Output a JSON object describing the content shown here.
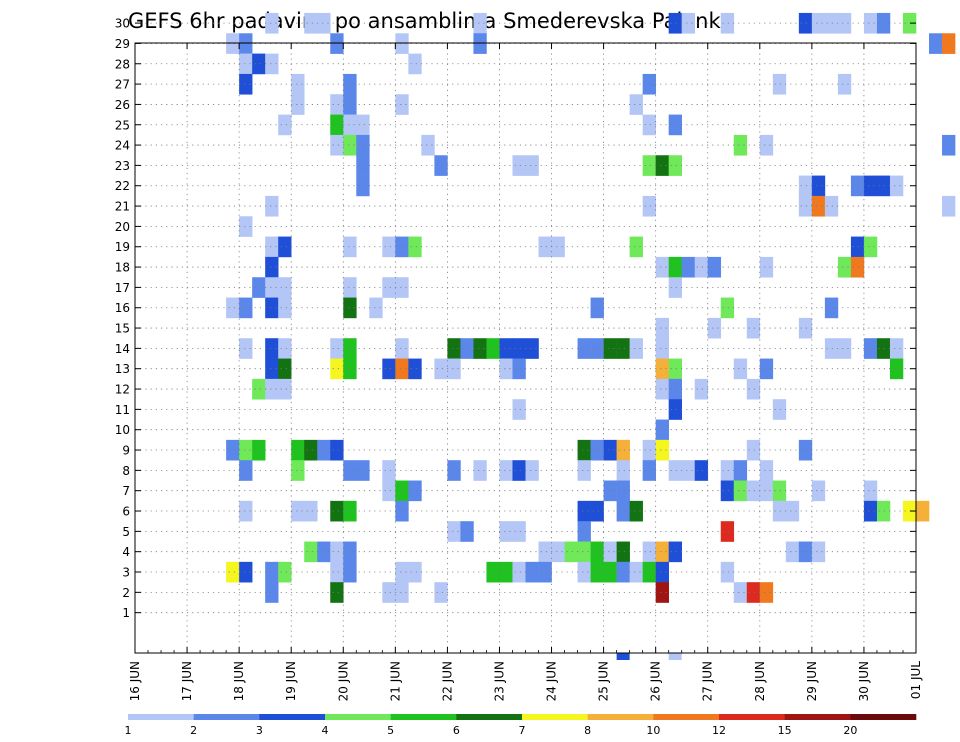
{
  "chart_data": {
    "type": "heatmap",
    "title": "GEFS 6hr padavine po ansamblima Smederevska Palanka",
    "xlabel": "",
    "ylabel": "",
    "y_categories": [
      "1",
      "2",
      "3",
      "4",
      "5",
      "6",
      "7",
      "8",
      "9",
      "10",
      "11",
      "12",
      "13",
      "14",
      "15",
      "16",
      "17",
      "18",
      "19",
      "20",
      "21",
      "22",
      "23",
      "24",
      "25",
      "26",
      "27",
      "28",
      "29",
      "30"
    ],
    "x_tick_labels": [
      "16 JUN",
      "17 JUN",
      "18 JUN",
      "19 JUN",
      "20 JUN",
      "21 JUN",
      "22 JUN",
      "23 JUN",
      "24 JUN",
      "25 JUN",
      "26 JUN",
      "27 JUN",
      "28 JUN",
      "29 JUN",
      "30 JUN",
      "01 JUL"
    ],
    "x_step": "6 hours",
    "grid": true,
    "colorbar": {
      "placement": "bottom",
      "labels": [
        "1",
        "2",
        "3",
        "4",
        "5",
        "6",
        "7",
        "8",
        "10",
        "12",
        "15",
        "20"
      ],
      "colors": [
        "#b3c6f5",
        "#5b87ea",
        "#1f4fd6",
        "#6fe85a",
        "#1fc21f",
        "#137313",
        "#f5f51f",
        "#f5b03a",
        "#f0781e",
        "#dc2a1e",
        "#a01414",
        "#6b0a0a"
      ]
    },
    "colors": [
      "#b3c6f5",
      "#5b87ea",
      "#1f4fd6",
      "#6fe85a",
      "#1fc21f",
      "#137313",
      "#f5f51f",
      "#f5b03a",
      "#f0781e",
      "#dc2a1e",
      "#a01414"
    ],
    "cells": [
      [
        30,
        10,
        0
      ],
      [
        30,
        13,
        0
      ],
      [
        30,
        14,
        0
      ],
      [
        30,
        26,
        0
      ],
      [
        30,
        41,
        2
      ],
      [
        30,
        42,
        0
      ],
      [
        30,
        45,
        0
      ],
      [
        30,
        51,
        2
      ],
      [
        30,
        52,
        0
      ],
      [
        30,
        53,
        0
      ],
      [
        30,
        54,
        0
      ],
      [
        30,
        56,
        0
      ],
      [
        30,
        57,
        1
      ],
      [
        30,
        59,
        3
      ],
      [
        29,
        7,
        0
      ],
      [
        29,
        8,
        1
      ],
      [
        29,
        15,
        1
      ],
      [
        29,
        20,
        0
      ],
      [
        29,
        26,
        1
      ],
      [
        29,
        61,
        1
      ],
      [
        29,
        62,
        8
      ],
      [
        28,
        8,
        0
      ],
      [
        28,
        9,
        2
      ],
      [
        28,
        10,
        0
      ],
      [
        28,
        21,
        0
      ],
      [
        27,
        8,
        2
      ],
      [
        27,
        12,
        0
      ],
      [
        27,
        16,
        1
      ],
      [
        27,
        39,
        1
      ],
      [
        27,
        49,
        0
      ],
      [
        27,
        54,
        0
      ],
      [
        26,
        12,
        0
      ],
      [
        26,
        15,
        0
      ],
      [
        26,
        16,
        1
      ],
      [
        26,
        20,
        0
      ],
      [
        26,
        38,
        0
      ],
      [
        25,
        11,
        0
      ],
      [
        25,
        15,
        4
      ],
      [
        25,
        16,
        0
      ],
      [
        25,
        17,
        0
      ],
      [
        25,
        39,
        0
      ],
      [
        25,
        41,
        1
      ],
      [
        24,
        15,
        0
      ],
      [
        24,
        16,
        3
      ],
      [
        24,
        17,
        1
      ],
      [
        24,
        22,
        0
      ],
      [
        24,
        46,
        3
      ],
      [
        24,
        48,
        0
      ],
      [
        24,
        62,
        1
      ],
      [
        23,
        17,
        1
      ],
      [
        23,
        23,
        1
      ],
      [
        23,
        29,
        0
      ],
      [
        23,
        30,
        0
      ],
      [
        23,
        39,
        3
      ],
      [
        23,
        40,
        5
      ],
      [
        23,
        41,
        3
      ],
      [
        22,
        17,
        1
      ],
      [
        22,
        51,
        0
      ],
      [
        22,
        52,
        2
      ],
      [
        22,
        55,
        1
      ],
      [
        22,
        56,
        2
      ],
      [
        22,
        57,
        2
      ],
      [
        22,
        58,
        0
      ],
      [
        21,
        10,
        0
      ],
      [
        21,
        39,
        0
      ],
      [
        21,
        51,
        0
      ],
      [
        21,
        52,
        8
      ],
      [
        21,
        53,
        0
      ],
      [
        21,
        62,
        0
      ],
      [
        20,
        8,
        0
      ],
      [
        19,
        10,
        0
      ],
      [
        19,
        11,
        2
      ],
      [
        19,
        16,
        0
      ],
      [
        19,
        19,
        0
      ],
      [
        19,
        20,
        1
      ],
      [
        19,
        21,
        3
      ],
      [
        19,
        31,
        0
      ],
      [
        19,
        32,
        0
      ],
      [
        19,
        38,
        3
      ],
      [
        19,
        55,
        2
      ],
      [
        19,
        56,
        3
      ],
      [
        18,
        10,
        2
      ],
      [
        18,
        40,
        0
      ],
      [
        18,
        41,
        4
      ],
      [
        18,
        42,
        1
      ],
      [
        18,
        43,
        0
      ],
      [
        18,
        44,
        1
      ],
      [
        18,
        48,
        0
      ],
      [
        18,
        54,
        3
      ],
      [
        18,
        55,
        8
      ],
      [
        17,
        9,
        1
      ],
      [
        17,
        10,
        0
      ],
      [
        17,
        11,
        0
      ],
      [
        17,
        16,
        0
      ],
      [
        17,
        19,
        0
      ],
      [
        17,
        20,
        0
      ],
      [
        17,
        41,
        0
      ],
      [
        16,
        7,
        0
      ],
      [
        16,
        8,
        1
      ],
      [
        16,
        10,
        2
      ],
      [
        16,
        11,
        0
      ],
      [
        16,
        16,
        5
      ],
      [
        16,
        18,
        0
      ],
      [
        16,
        35,
        1
      ],
      [
        16,
        45,
        3
      ],
      [
        16,
        53,
        1
      ],
      [
        15,
        40,
        0
      ],
      [
        15,
        44,
        0
      ],
      [
        15,
        47,
        0
      ],
      [
        15,
        51,
        0
      ],
      [
        14,
        8,
        0
      ],
      [
        14,
        10,
        2
      ],
      [
        14,
        11,
        0
      ],
      [
        14,
        15,
        0
      ],
      [
        14,
        16,
        4
      ],
      [
        14,
        20,
        0
      ],
      [
        14,
        24,
        5
      ],
      [
        14,
        25,
        1
      ],
      [
        14,
        26,
        5
      ],
      [
        14,
        27,
        4
      ],
      [
        14,
        28,
        2
      ],
      [
        14,
        29,
        2
      ],
      [
        14,
        30,
        2
      ],
      [
        14,
        34,
        1
      ],
      [
        14,
        35,
        1
      ],
      [
        14,
        36,
        5
      ],
      [
        14,
        37,
        5
      ],
      [
        14,
        38,
        0
      ],
      [
        14,
        40,
        0
      ],
      [
        14,
        53,
        0
      ],
      [
        14,
        54,
        0
      ],
      [
        14,
        56,
        1
      ],
      [
        14,
        57,
        5
      ],
      [
        14,
        58,
        0
      ],
      [
        13,
        10,
        2
      ],
      [
        13,
        11,
        5
      ],
      [
        13,
        15,
        6
      ],
      [
        13,
        16,
        4
      ],
      [
        13,
        19,
        2
      ],
      [
        13,
        20,
        8
      ],
      [
        13,
        21,
        2
      ],
      [
        13,
        23,
        0
      ],
      [
        13,
        24,
        0
      ],
      [
        13,
        28,
        0
      ],
      [
        13,
        29,
        1
      ],
      [
        13,
        40,
        7
      ],
      [
        13,
        41,
        3
      ],
      [
        13,
        46,
        0
      ],
      [
        13,
        48,
        1
      ],
      [
        13,
        58,
        4
      ],
      [
        12,
        9,
        3
      ],
      [
        12,
        10,
        0
      ],
      [
        12,
        11,
        0
      ],
      [
        12,
        40,
        0
      ],
      [
        12,
        41,
        1
      ],
      [
        12,
        43,
        0
      ],
      [
        12,
        47,
        0
      ],
      [
        11,
        29,
        0
      ],
      [
        11,
        41,
        2
      ],
      [
        11,
        49,
        0
      ],
      [
        10,
        40,
        1
      ],
      [
        9,
        7,
        1
      ],
      [
        9,
        8,
        3
      ],
      [
        9,
        9,
        4
      ],
      [
        9,
        12,
        4
      ],
      [
        9,
        13,
        5
      ],
      [
        9,
        14,
        1
      ],
      [
        9,
        15,
        2
      ],
      [
        9,
        34,
        5
      ],
      [
        9,
        35,
        1
      ],
      [
        9,
        36,
        2
      ],
      [
        9,
        37,
        7
      ],
      [
        9,
        39,
        0
      ],
      [
        9,
        40,
        6
      ],
      [
        9,
        47,
        0
      ],
      [
        9,
        51,
        1
      ],
      [
        8,
        8,
        1
      ],
      [
        8,
        12,
        3
      ],
      [
        8,
        16,
        1
      ],
      [
        8,
        17,
        1
      ],
      [
        8,
        19,
        0
      ],
      [
        8,
        24,
        1
      ],
      [
        8,
        26,
        0
      ],
      [
        8,
        28,
        0
      ],
      [
        8,
        29,
        2
      ],
      [
        8,
        30,
        0
      ],
      [
        8,
        34,
        0
      ],
      [
        8,
        37,
        0
      ],
      [
        8,
        39,
        1
      ],
      [
        8,
        41,
        0
      ],
      [
        8,
        42,
        0
      ],
      [
        8,
        43,
        2
      ],
      [
        8,
        45,
        0
      ],
      [
        8,
        46,
        1
      ],
      [
        8,
        48,
        0
      ],
      [
        7,
        19,
        0
      ],
      [
        7,
        20,
        4
      ],
      [
        7,
        21,
        1
      ],
      [
        7,
        36,
        1
      ],
      [
        7,
        37,
        1
      ],
      [
        7,
        45,
        2
      ],
      [
        7,
        46,
        3
      ],
      [
        7,
        47,
        0
      ],
      [
        7,
        48,
        0
      ],
      [
        7,
        49,
        3
      ],
      [
        7,
        52,
        0
      ],
      [
        7,
        56,
        0
      ],
      [
        6,
        8,
        0
      ],
      [
        6,
        12,
        0
      ],
      [
        6,
        13,
        0
      ],
      [
        6,
        15,
        5
      ],
      [
        6,
        16,
        4
      ],
      [
        6,
        20,
        1
      ],
      [
        6,
        34,
        2
      ],
      [
        6,
        35,
        2
      ],
      [
        6,
        37,
        1
      ],
      [
        6,
        38,
        5
      ],
      [
        6,
        49,
        0
      ],
      [
        6,
        50,
        0
      ],
      [
        6,
        56,
        2
      ],
      [
        6,
        57,
        3
      ],
      [
        6,
        59,
        6
      ],
      [
        6,
        60,
        7
      ],
      [
        5,
        24,
        0
      ],
      [
        5,
        25,
        1
      ],
      [
        5,
        28,
        0
      ],
      [
        5,
        29,
        0
      ],
      [
        5,
        34,
        1
      ],
      [
        5,
        45,
        9
      ],
      [
        4,
        13,
        3
      ],
      [
        4,
        14,
        1
      ],
      [
        4,
        15,
        0
      ],
      [
        4,
        16,
        1
      ],
      [
        4,
        31,
        0
      ],
      [
        4,
        32,
        0
      ],
      [
        4,
        33,
        3
      ],
      [
        4,
        34,
        3
      ],
      [
        4,
        35,
        4
      ],
      [
        4,
        36,
        0
      ],
      [
        4,
        37,
        5
      ],
      [
        4,
        39,
        0
      ],
      [
        4,
        40,
        7
      ],
      [
        4,
        41,
        2
      ],
      [
        4,
        50,
        0
      ],
      [
        4,
        51,
        1
      ],
      [
        4,
        52,
        0
      ],
      [
        3,
        7,
        6
      ],
      [
        3,
        8,
        2
      ],
      [
        3,
        10,
        1
      ],
      [
        3,
        11,
        3
      ],
      [
        3,
        15,
        0
      ],
      [
        3,
        16,
        1
      ],
      [
        3,
        20,
        0
      ],
      [
        3,
        21,
        0
      ],
      [
        3,
        27,
        4
      ],
      [
        3,
        28,
        4
      ],
      [
        3,
        29,
        0
      ],
      [
        3,
        30,
        1
      ],
      [
        3,
        31,
        1
      ],
      [
        3,
        34,
        0
      ],
      [
        3,
        35,
        4
      ],
      [
        3,
        36,
        4
      ],
      [
        3,
        37,
        1
      ],
      [
        3,
        38,
        0
      ],
      [
        3,
        39,
        4
      ],
      [
        3,
        40,
        2
      ],
      [
        3,
        45,
        0
      ],
      [
        2,
        10,
        1
      ],
      [
        2,
        15,
        5
      ],
      [
        2,
        19,
        0
      ],
      [
        2,
        20,
        0
      ],
      [
        2,
        23,
        0
      ],
      [
        2,
        40,
        10
      ],
      [
        2,
        46,
        0
      ],
      [
        2,
        47,
        9
      ],
      [
        2,
        48,
        8
      ]
    ],
    "outside_cells": [
      [
        37,
        2
      ],
      [
        41,
        0
      ]
    ]
  }
}
